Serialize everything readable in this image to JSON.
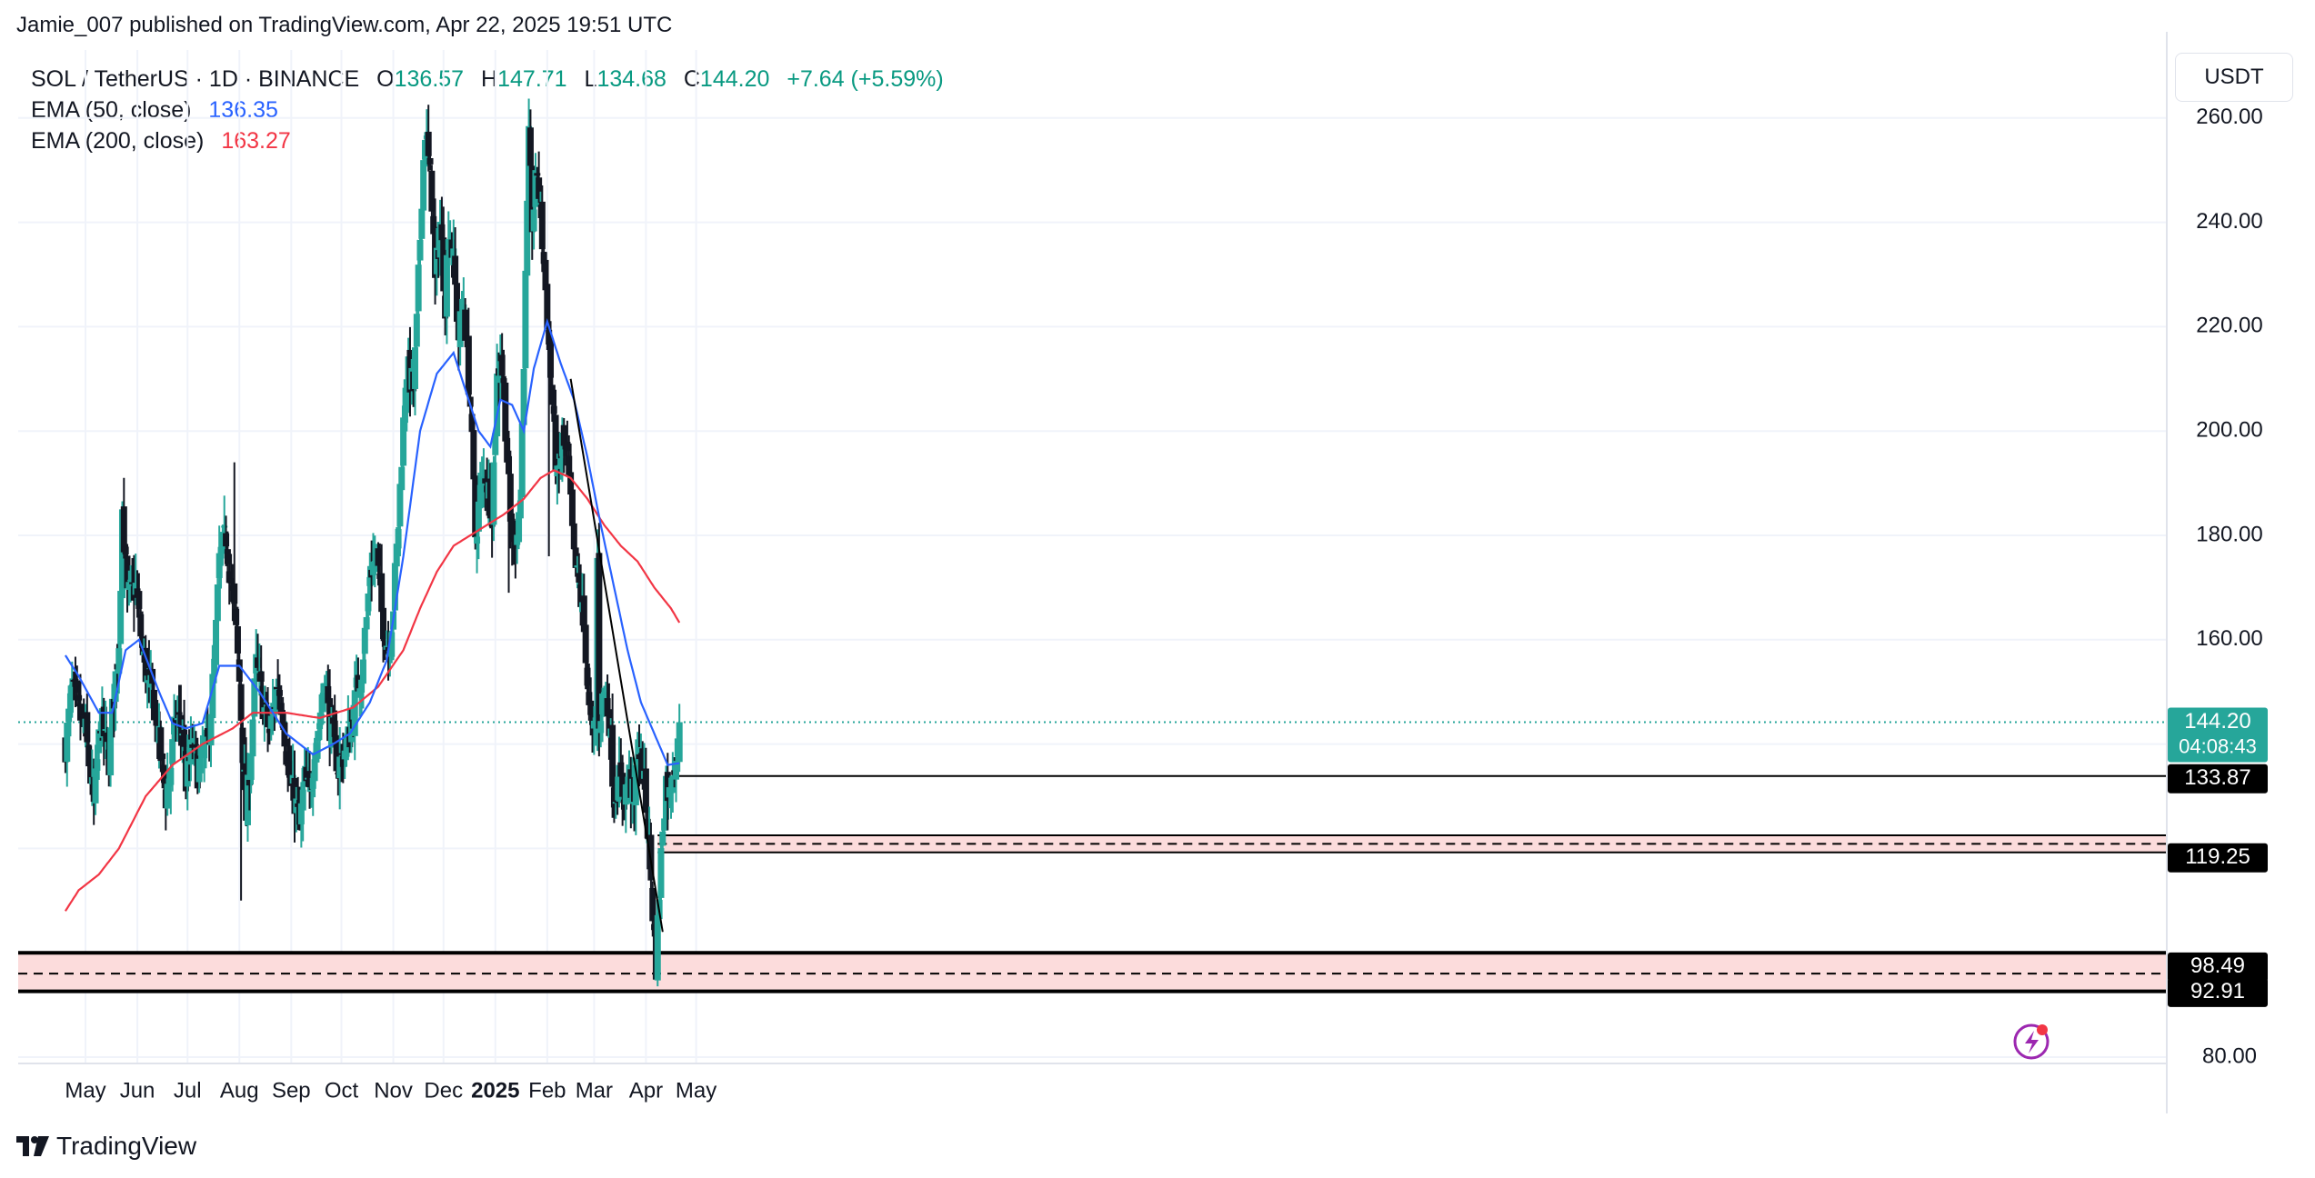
{
  "publisher_line": "Jamie_007 published on TradingView.com, Apr 22, 2025 19:51 UTC",
  "legend": {
    "symbol": "SOL / TetherUS · 1D · BINANCE",
    "o_label": "O",
    "o": "136.57",
    "h_label": "H",
    "h": "147.71",
    "l_label": "L",
    "l": "134.68",
    "c_label": "C",
    "c": "144.20",
    "change": "+7.64 (+5.59%)",
    "ema50_label": "EMA (50, close)",
    "ema50_value": "136.35",
    "ema200_label": "EMA (200, close)",
    "ema200_value": "163.27"
  },
  "currency": "USDT",
  "brand": "TradingView",
  "colors": {
    "up": "#26a69a",
    "down": "#131722",
    "ema50": "#2962ff",
    "ema200": "#f23645",
    "zone": "#fcdcdc",
    "text": "#131722"
  },
  "price_tags": {
    "last_price": "144.20",
    "countdown": "04:08:43",
    "r1": "133.87",
    "r2": "119.25",
    "s1": "98.49",
    "s2": "92.91"
  },
  "chart_data": {
    "type": "candlestick",
    "title": "SOL / TetherUS · 1D · BINANCE",
    "y_ticks": [
      80,
      100,
      120,
      140,
      160,
      180,
      200,
      220,
      240,
      260
    ],
    "y_tick_labels": [
      "80.00",
      "",
      "",
      "",
      "160.00",
      "180.00",
      "200.00",
      "220.00",
      "240.00",
      "260.00"
    ],
    "ylim": [
      76,
      278
    ],
    "x_labels": [
      "May",
      "Jun",
      "Jul",
      "Aug",
      "Sep",
      "Oct",
      "Nov",
      "Dec",
      "2025",
      "Feb",
      "Mar",
      "Apr",
      "May"
    ],
    "x_label_days": [
      0,
      31,
      61,
      92,
      123,
      153,
      184,
      214,
      245,
      276,
      304,
      335,
      365
    ],
    "close_anchors": [
      [
        -12,
        140
      ],
      [
        -8,
        150
      ],
      [
        0,
        142
      ],
      [
        5,
        128
      ],
      [
        9,
        145
      ],
      [
        14,
        137
      ],
      [
        16,
        146
      ],
      [
        20,
        160
      ],
      [
        22,
        185
      ],
      [
        25,
        168
      ],
      [
        30,
        170
      ],
      [
        34,
        158
      ],
      [
        38,
        150
      ],
      [
        40,
        150
      ],
      [
        44,
        140
      ],
      [
        48,
        130
      ],
      [
        51,
        136
      ],
      [
        54,
        145
      ],
      [
        58,
        143
      ],
      [
        60,
        133
      ],
      [
        64,
        140
      ],
      [
        67,
        135
      ],
      [
        73,
        140
      ],
      [
        77,
        155
      ],
      [
        80,
        175
      ],
      [
        84,
        180
      ],
      [
        89,
        165
      ],
      [
        92,
        152
      ],
      [
        96,
        126
      ],
      [
        99,
        140
      ],
      [
        102,
        155
      ],
      [
        106,
        148
      ],
      [
        110,
        142
      ],
      [
        115,
        152
      ],
      [
        118,
        146
      ],
      [
        121,
        135
      ],
      [
        126,
        128
      ],
      [
        128,
        124
      ],
      [
        131,
        133
      ],
      [
        134,
        130
      ],
      [
        137,
        140
      ],
      [
        141,
        146
      ],
      [
        143,
        155
      ],
      [
        145,
        146
      ],
      [
        147,
        142
      ],
      [
        151,
        136
      ],
      [
        154,
        138
      ],
      [
        158,
        142
      ],
      [
        162,
        150
      ],
      [
        165,
        155
      ],
      [
        168,
        164
      ],
      [
        170,
        173
      ],
      [
        174,
        176
      ],
      [
        177,
        165
      ],
      [
        181,
        158
      ],
      [
        184,
        167
      ],
      [
        187,
        182
      ],
      [
        189,
        196
      ],
      [
        192,
        212
      ],
      [
        196,
        208
      ],
      [
        198,
        220
      ],
      [
        201,
        246
      ],
      [
        203,
        258
      ],
      [
        207,
        245
      ],
      [
        209,
        228
      ],
      [
        212,
        240
      ],
      [
        215,
        225
      ],
      [
        217,
        240
      ],
      [
        220,
        232
      ],
      [
        223,
        218
      ],
      [
        226,
        225
      ],
      [
        230,
        205
      ],
      [
        233,
        180
      ],
      [
        236,
        188
      ],
      [
        239,
        192
      ],
      [
        243,
        185
      ],
      [
        246,
        210
      ],
      [
        248,
        215
      ],
      [
        250,
        208
      ],
      [
        254,
        182
      ],
      [
        256,
        178
      ],
      [
        260,
        187
      ],
      [
        262,
        215
      ],
      [
        265,
        255
      ],
      [
        267,
        240
      ],
      [
        270,
        250
      ],
      [
        274,
        232
      ],
      [
        276,
        222
      ],
      [
        279,
        205
      ],
      [
        282,
        190
      ],
      [
        285,
        198
      ],
      [
        288,
        194
      ],
      [
        290,
        185
      ],
      [
        292,
        175
      ],
      [
        295,
        170
      ],
      [
        297,
        165
      ],
      [
        299,
        158
      ],
      [
        301,
        146
      ],
      [
        303,
        141
      ],
      [
        305,
        145
      ],
      [
        306,
        175
      ],
      [
        307,
        145
      ],
      [
        310,
        150
      ],
      [
        313,
        145
      ],
      [
        316,
        130
      ],
      [
        319,
        133
      ],
      [
        322,
        130
      ],
      [
        325,
        134
      ],
      [
        328,
        128
      ],
      [
        330,
        140
      ],
      [
        333,
        135
      ],
      [
        335,
        128
      ],
      [
        337,
        120
      ],
      [
        339,
        108
      ],
      [
        341,
        98
      ],
      [
        343,
        112
      ],
      [
        345,
        125
      ],
      [
        347,
        133
      ],
      [
        349,
        130
      ],
      [
        351,
        136
      ],
      [
        354,
        139
      ],
      [
        355,
        144.2
      ]
    ],
    "ema50_anchors": [
      [
        -12,
        157
      ],
      [
        -4,
        153
      ],
      [
        8,
        146
      ],
      [
        16,
        146
      ],
      [
        24,
        158
      ],
      [
        32,
        160
      ],
      [
        44,
        150
      ],
      [
        52,
        144
      ],
      [
        60,
        143
      ],
      [
        70,
        144
      ],
      [
        80,
        155
      ],
      [
        92,
        155
      ],
      [
        104,
        150
      ],
      [
        120,
        142
      ],
      [
        136,
        138
      ],
      [
        148,
        140
      ],
      [
        158,
        142
      ],
      [
        170,
        148
      ],
      [
        180,
        156
      ],
      [
        190,
        176
      ],
      [
        200,
        200
      ],
      [
        210,
        211
      ],
      [
        220,
        215
      ],
      [
        228,
        207
      ],
      [
        235,
        200
      ],
      [
        242,
        197
      ],
      [
        248,
        206
      ],
      [
        255,
        205
      ],
      [
        262,
        200
      ],
      [
        268,
        212
      ],
      [
        276,
        221
      ],
      [
        284,
        213
      ],
      [
        292,
        206
      ],
      [
        300,
        195
      ],
      [
        308,
        182
      ],
      [
        316,
        170
      ],
      [
        324,
        158
      ],
      [
        332,
        148
      ],
      [
        340,
        142
      ],
      [
        348,
        136
      ],
      [
        355,
        136.35
      ]
    ],
    "ema200_anchors": [
      [
        -12,
        108
      ],
      [
        -4,
        112
      ],
      [
        8,
        115
      ],
      [
        20,
        120
      ],
      [
        36,
        130
      ],
      [
        52,
        136
      ],
      [
        70,
        140
      ],
      [
        88,
        143
      ],
      [
        100,
        146
      ],
      [
        120,
        146
      ],
      [
        140,
        145
      ],
      [
        160,
        147
      ],
      [
        175,
        151
      ],
      [
        190,
        158
      ],
      [
        200,
        166
      ],
      [
        210,
        173
      ],
      [
        220,
        178
      ],
      [
        235,
        181
      ],
      [
        250,
        184
      ],
      [
        262,
        187
      ],
      [
        272,
        191
      ],
      [
        280,
        192.5
      ],
      [
        290,
        191
      ],
      [
        300,
        187
      ],
      [
        310,
        182
      ],
      [
        320,
        178
      ],
      [
        330,
        175
      ],
      [
        340,
        170
      ],
      [
        350,
        166
      ],
      [
        355,
        163.27
      ]
    ],
    "lines": {
      "downtrend": [
        [
          290,
          210
        ],
        [
          345,
          104
        ]
      ],
      "r1": 133.87,
      "r2_zone": [
        119.25,
        122.5
      ],
      "support_zone": [
        92.91,
        98.49
      ]
    }
  }
}
